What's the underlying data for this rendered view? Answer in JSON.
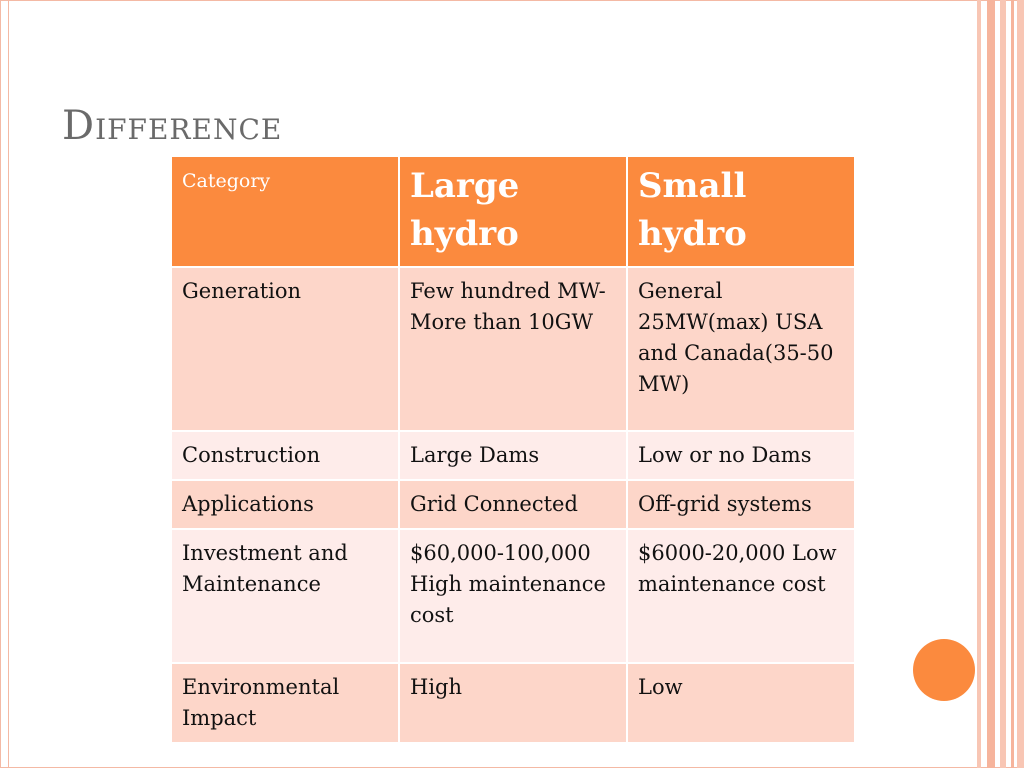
{
  "slide": {
    "title": "Difference"
  },
  "table": {
    "headers": [
      "Category",
      "Large hydro",
      "Small hydro"
    ],
    "rows": [
      [
        "Generation",
        "Few hundred MW-More than 10GW",
        "General 25MW(max) USA and Canada(35-50 MW)"
      ],
      [
        "Construction",
        "Large Dams",
        "Low or no Dams"
      ],
      [
        "Applications",
        "Grid Connected",
        "Off-grid systems"
      ],
      [
        "Investment and Maintenance",
        "$60,000-100,000 High maintenance cost",
        "$6000-20,000 Low maintenance cost"
      ],
      [
        "Environmental Impact",
        "High",
        "Low"
      ]
    ]
  },
  "colors": {
    "header": "#fb8a3e",
    "row_dark": "#fdd6c9",
    "row_light": "#feecea",
    "title": "#6a6a6a",
    "accent": "#fb8a3e"
  }
}
